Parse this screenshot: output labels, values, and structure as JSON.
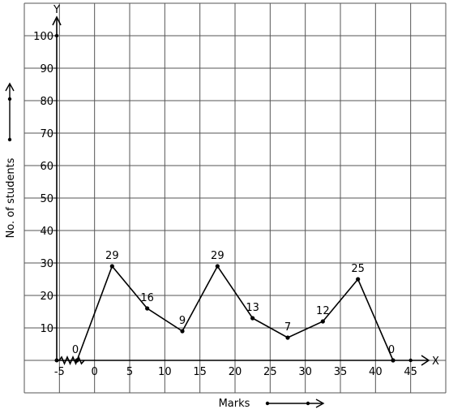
{
  "chart_data": {
    "type": "line",
    "title": "",
    "xlabel": "Marks",
    "ylabel": "No. of students",
    "x_axis_letter": "X",
    "y_axis_letter": "Y",
    "x_ticks": [
      -5,
      0,
      5,
      10,
      15,
      20,
      25,
      30,
      35,
      40,
      45
    ],
    "x_tick_labels": [
      "-5",
      "0",
      "5",
      "10",
      "15",
      "20",
      "25",
      "30",
      "35",
      "40",
      "45"
    ],
    "y_ticks": [
      10,
      20,
      30,
      40,
      50,
      60,
      70,
      80,
      90,
      100
    ],
    "y_tick_labels": [
      "10",
      "20",
      "30",
      "40",
      "50",
      "60",
      "70",
      "80",
      "90",
      "100"
    ],
    "xlim": [
      -10,
      50
    ],
    "ylim": [
      -10,
      110
    ],
    "grid": true,
    "axis_break_on_x": true,
    "series": [
      {
        "x": [
          -2.5,
          2.5,
          7.5,
          12.5,
          17.5,
          22.5,
          27.5,
          32.5,
          37.5,
          42.5
        ],
        "y": [
          0,
          29,
          16,
          9,
          29,
          13,
          7,
          12,
          25,
          0
        ],
        "labels": [
          "0",
          "29",
          "16",
          "9",
          "29",
          "13",
          "7",
          "12",
          "25",
          "0"
        ]
      }
    ]
  }
}
